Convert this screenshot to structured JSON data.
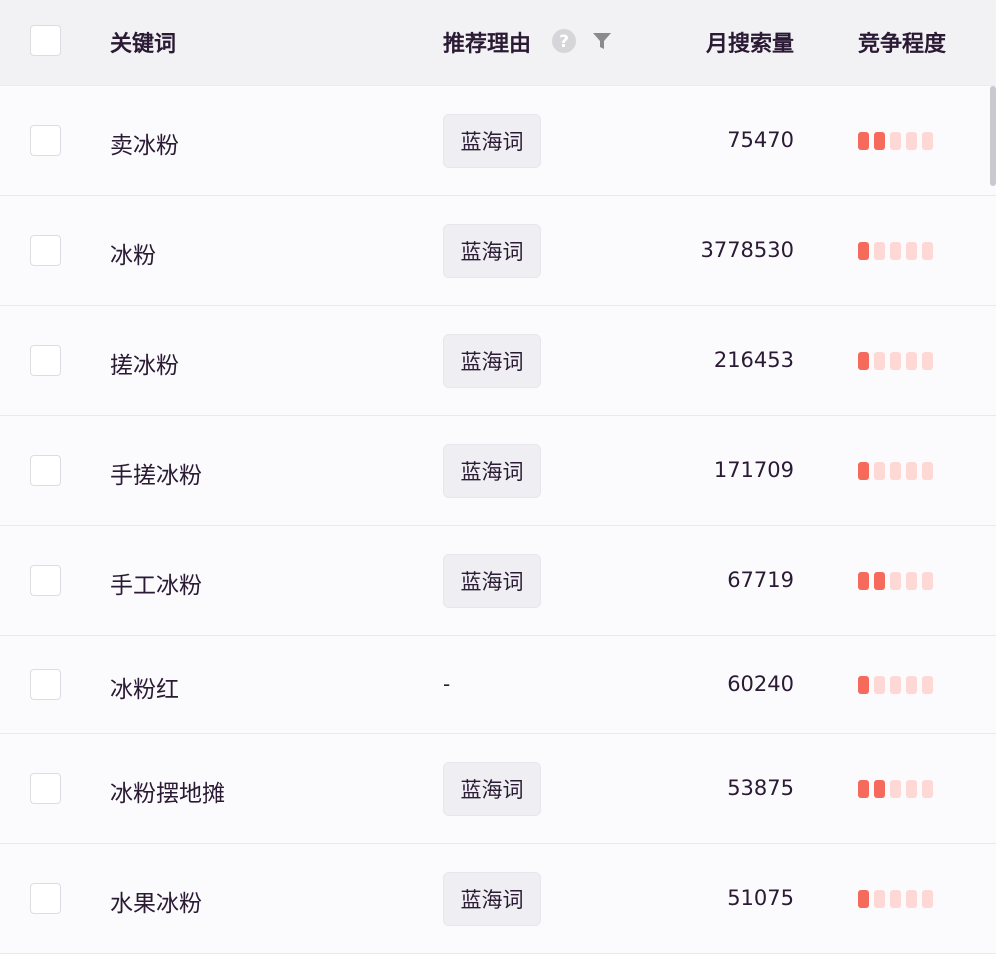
{
  "header": {
    "keyword": "关键词",
    "reason": "推荐理由",
    "monthly_search": "月搜索量",
    "competition": "竞争程度",
    "help_icon": "question-circle",
    "filter_icon": "funnel"
  },
  "colors": {
    "bar_on": "#f66a5c",
    "bar_off": "#fdd8d4"
  },
  "rows": [
    {
      "keyword": "卖冰粉",
      "reason": "蓝海词",
      "search": "75470",
      "level": 2
    },
    {
      "keyword": "冰粉",
      "reason": "蓝海词",
      "search": "3778530",
      "level": 1
    },
    {
      "keyword": "搓冰粉",
      "reason": "蓝海词",
      "search": "216453",
      "level": 1
    },
    {
      "keyword": "手搓冰粉",
      "reason": "蓝海词",
      "search": "171709",
      "level": 1
    },
    {
      "keyword": "手工冰粉",
      "reason": "蓝海词",
      "search": "67719",
      "level": 2
    },
    {
      "keyword": "冰粉红",
      "reason": "-",
      "search": "60240",
      "level": 1
    },
    {
      "keyword": "冰粉摆地摊",
      "reason": "蓝海词",
      "search": "53875",
      "level": 2
    },
    {
      "keyword": "水果冰粉",
      "reason": "蓝海词",
      "search": "51075",
      "level": 1
    }
  ],
  "competition_max": 5
}
